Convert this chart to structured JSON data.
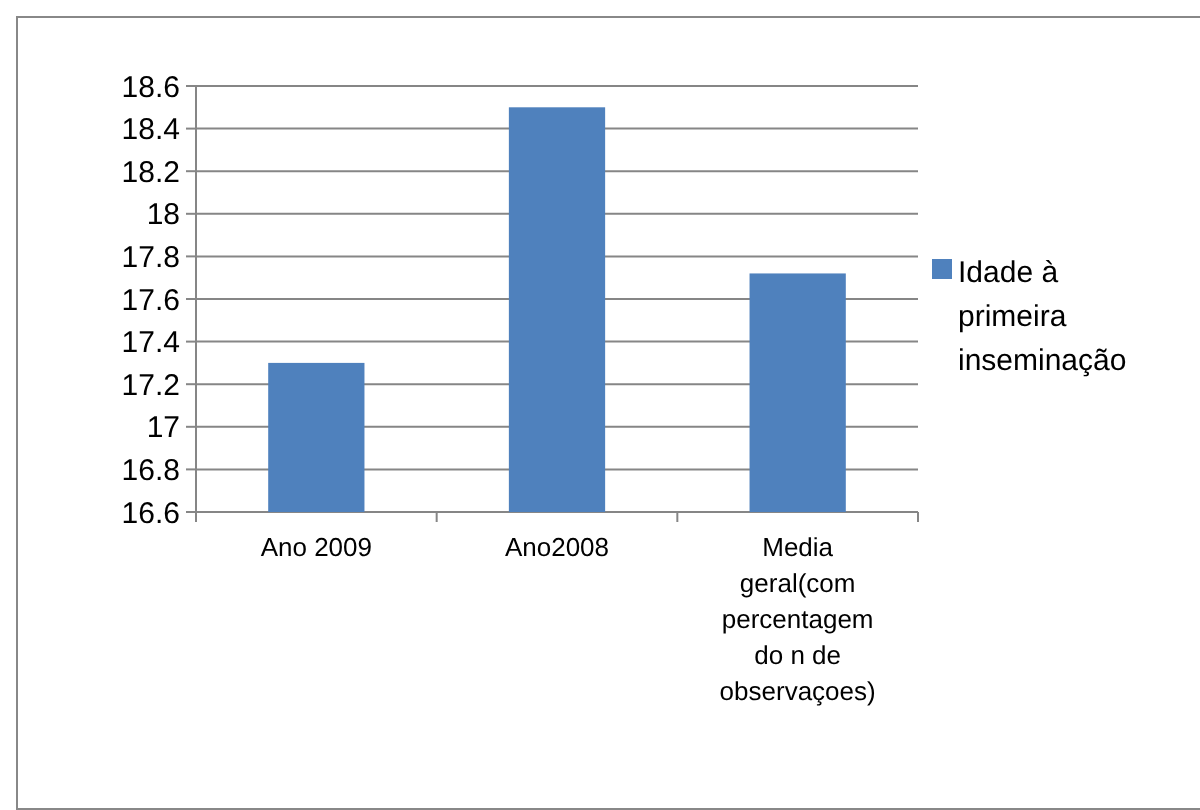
{
  "chart_data": {
    "type": "bar",
    "categories": [
      "Ano 2009",
      "Ano2008",
      "Media geral(com percentagem do n de observaçoes)"
    ],
    "series": [
      {
        "name": "Idade à primeira inseminação",
        "color": "#4f81bd",
        "values": [
          17.3,
          18.5,
          17.72
        ]
      }
    ],
    "ylim": [
      16.6,
      18.6
    ],
    "yticks": [
      16.6,
      16.8,
      17,
      17.2,
      17.4,
      17.6,
      17.8,
      18,
      18.2,
      18.4,
      18.6
    ],
    "grid": "y",
    "legend": "right"
  }
}
